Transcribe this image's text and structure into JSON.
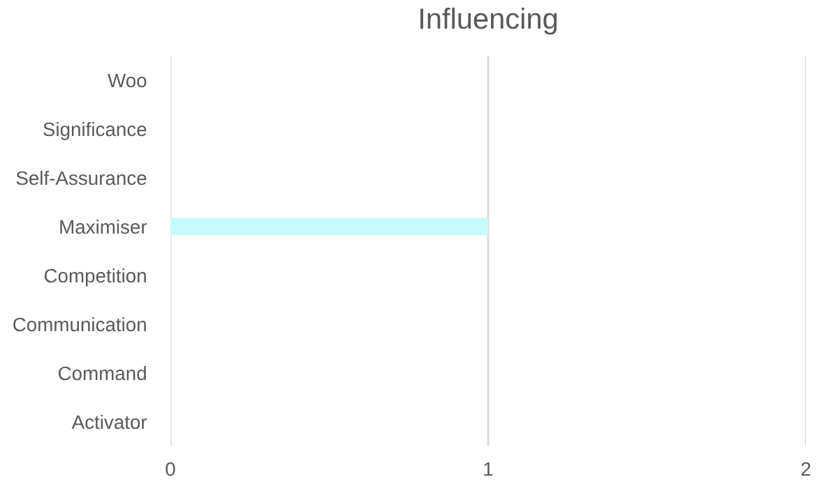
{
  "chart_data": {
    "type": "bar",
    "orientation": "horizontal",
    "title": "Influencing",
    "categories": [
      "Woo",
      "Significance",
      "Self-Assurance",
      "Maximiser",
      "Competition",
      "Communication",
      "Command",
      "Activator"
    ],
    "values": [
      0,
      0,
      0,
      1,
      0,
      0,
      0,
      0
    ],
    "color": "#c4fafc",
    "xlim": [
      0,
      2
    ],
    "xticks": [
      0,
      1,
      2
    ],
    "grid": "x",
    "legend": false
  }
}
